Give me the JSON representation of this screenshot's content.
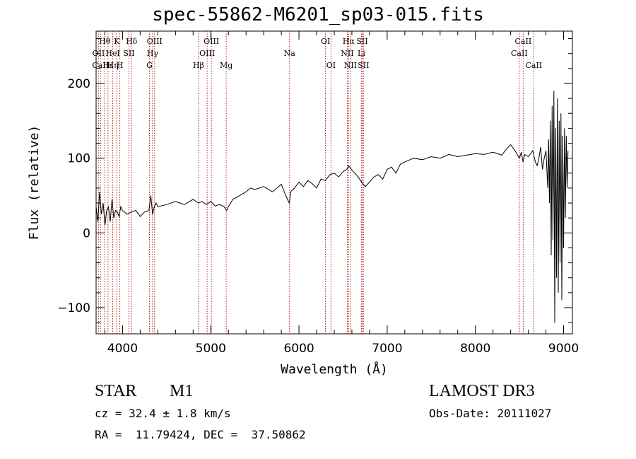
{
  "chart_data": {
    "type": "line",
    "title": "spec-55862-M6201_sp03-015.fits",
    "xlabel": "Wavelength (Å)",
    "ylabel": "Flux (relative)",
    "xlim": [
      3700,
      9100
    ],
    "ylim": [
      -135,
      270
    ],
    "xticks": [
      4000,
      5000,
      6000,
      7000,
      8000,
      9000
    ],
    "yticks": [
      -100,
      0,
      100,
      200
    ],
    "grid": false,
    "series": [
      {
        "name": "flux",
        "x": [
          3700,
          3720,
          3740,
          3760,
          3780,
          3800,
          3820,
          3840,
          3860,
          3880,
          3900,
          3920,
          3940,
          3960,
          3980,
          4000,
          4050,
          4100,
          4150,
          4200,
          4250,
          4300,
          4320,
          4340,
          4360,
          4380,
          4400,
          4500,
          4600,
          4700,
          4800,
          4860,
          4900,
          4950,
          5000,
          5050,
          5100,
          5150,
          5180,
          5200,
          5250,
          5300,
          5400,
          5450,
          5500,
          5600,
          5700,
          5800,
          5850,
          5890,
          5910,
          5950,
          6000,
          6050,
          6100,
          6150,
          6200,
          6250,
          6300,
          6350,
          6400,
          6450,
          6500,
          6550,
          6563,
          6600,
          6650,
          6700,
          6750,
          6800,
          6850,
          6900,
          6950,
          7000,
          7050,
          7100,
          7150,
          7200,
          7300,
          7400,
          7500,
          7600,
          7700,
          7800,
          7900,
          8000,
          8100,
          8200,
          8300,
          8350,
          8400,
          8450,
          8500,
          8520,
          8540,
          8560,
          8600,
          8650,
          8680,
          8700,
          8720,
          8740,
          8760,
          8780,
          8800,
          8820,
          8830,
          8840,
          8850,
          8860,
          8870,
          8880,
          8890,
          8900,
          8910,
          8920,
          8930,
          8940,
          8950,
          8960,
          8970,
          8980,
          8990,
          9000,
          9010,
          9020,
          9030,
          9040,
          9050
        ],
        "values": [
          35,
          15,
          55,
          25,
          40,
          10,
          30,
          35,
          15,
          45,
          20,
          30,
          28,
          22,
          35,
          30,
          25,
          28,
          30,
          22,
          28,
          30,
          50,
          25,
          35,
          40,
          35,
          38,
          42,
          38,
          45,
          40,
          42,
          38,
          42,
          36,
          38,
          35,
          30,
          35,
          45,
          48,
          55,
          60,
          58,
          62,
          55,
          65,
          50,
          40,
          56,
          60,
          68,
          62,
          70,
          66,
          60,
          72,
          70,
          78,
          80,
          75,
          82,
          86,
          90,
          84,
          78,
          70,
          62,
          68,
          75,
          78,
          72,
          85,
          88,
          80,
          92,
          95,
          100,
          98,
          102,
          100,
          105,
          102,
          104,
          106,
          105,
          108,
          104,
          112,
          118,
          110,
          100,
          108,
          95,
          105,
          102,
          110,
          95,
          90,
          100,
          115,
          85,
          100,
          110,
          60,
          125,
          40,
          150,
          -30,
          170,
          -10,
          190,
          -120,
          140,
          -60,
          180,
          -80,
          150,
          -40,
          160,
          -90,
          130,
          -20,
          140,
          20,
          130,
          60,
          110
        ]
      }
    ],
    "line_markers": [
      {
        "label": "Hθ",
        "x": 3798,
        "row": 0
      },
      {
        "label": "OII",
        "x": 3727,
        "row": 1
      },
      {
        "label": "CaII",
        "x": 3750,
        "row": 2
      },
      {
        "label": "Hε",
        "x": 3835,
        "row": 2
      },
      {
        "label": "Hη",
        "x": 3889,
        "row": 2
      },
      {
        "label": "HeI",
        "x": 3889,
        "row": 1
      },
      {
        "label": "K",
        "x": 3934,
        "row": 0
      },
      {
        "label": "H",
        "x": 3969,
        "row": 2
      },
      {
        "label": "SII",
        "x": 4072,
        "row": 1
      },
      {
        "label": "Hδ",
        "x": 4102,
        "row": 0
      },
      {
        "label": "OIII",
        "x": 4363,
        "row": 0
      },
      {
        "label": "Hγ",
        "x": 4340,
        "row": 1
      },
      {
        "label": "G",
        "x": 4305,
        "row": 2
      },
      {
        "label": "Hβ",
        "x": 4861,
        "row": 2
      },
      {
        "label": "OIII",
        "x": 5007,
        "row": 0
      },
      {
        "label": "OIII",
        "x": 4959,
        "row": 1
      },
      {
        "label": "Mg",
        "x": 5175,
        "row": 2
      },
      {
        "label": "Na",
        "x": 5893,
        "row": 1
      },
      {
        "label": "OI",
        "x": 6300,
        "row": 0
      },
      {
        "label": "OI",
        "x": 6363,
        "row": 2
      },
      {
        "label": "Hα",
        "x": 6563,
        "row": 0
      },
      {
        "label": "NII",
        "x": 6548,
        "row": 1
      },
      {
        "label": "NII",
        "x": 6584,
        "row": 2
      },
      {
        "label": "SII",
        "x": 6716,
        "row": 0
      },
      {
        "label": "Li",
        "x": 6708,
        "row": 1
      },
      {
        "label": "SII",
        "x": 6731,
        "row": 2
      },
      {
        "label": "CaII",
        "x": 8542,
        "row": 0
      },
      {
        "label": "CaII",
        "x": 8498,
        "row": 1
      },
      {
        "label": "CaII",
        "x": 8662,
        "row": 2
      }
    ]
  },
  "info": {
    "object_class": "STAR",
    "subclass": "M1",
    "survey": "LAMOST DR3",
    "redshift": "cz = 32.4 ± 1.8 km/s",
    "obs_date": "Obs-Date: 20111027",
    "coords": "RA =  11.79424, DEC =  37.50862"
  },
  "colors": {
    "line": "#000000",
    "marker": "#b22222"
  }
}
